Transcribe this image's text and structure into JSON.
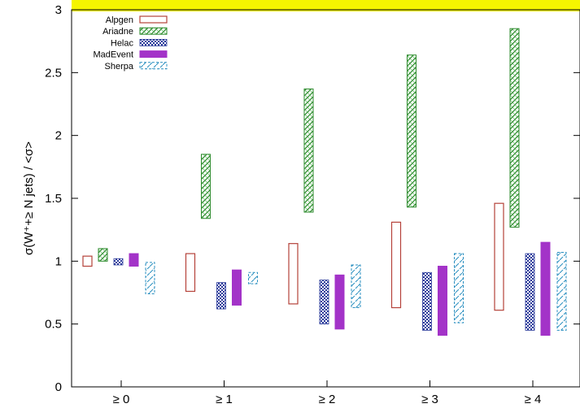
{
  "chart_data": {
    "type": "bar",
    "title": "",
    "ylabel": "σ(W⁺+≥ N jets) / <σ>",
    "xlabel": "",
    "ylim": [
      0,
      3
    ],
    "yticks": [
      0,
      0.5,
      1,
      1.5,
      2,
      2.5,
      3
    ],
    "ytick_labels": [
      "0",
      "0.5",
      "1",
      "1.5",
      "2",
      "2.5",
      "3"
    ],
    "categories": [
      "≥ 0",
      "≥ 1",
      "≥ 2",
      "≥ 3",
      "≥ 4"
    ],
    "legend_position": "top-left",
    "series": [
      {
        "name": "Alpgen",
        "style": "hollow",
        "color": "#b5423a",
        "ranges": [
          [
            0.96,
            1.04
          ],
          [
            0.76,
            1.06
          ],
          [
            0.66,
            1.14
          ],
          [
            0.63,
            1.31
          ],
          [
            0.61,
            1.46
          ]
        ]
      },
      {
        "name": "Ariadne",
        "style": "hatch-green",
        "color": "#2e8b2e",
        "ranges": [
          [
            1.0,
            1.1
          ],
          [
            1.34,
            1.85
          ],
          [
            1.39,
            2.37
          ],
          [
            1.43,
            2.64
          ],
          [
            1.27,
            2.85
          ]
        ]
      },
      {
        "name": "Helac",
        "style": "hatch-blue",
        "color": "#2a3a9a",
        "ranges": [
          [
            0.97,
            1.02
          ],
          [
            0.62,
            0.83
          ],
          [
            0.5,
            0.85
          ],
          [
            0.45,
            0.91
          ],
          [
            0.45,
            1.06
          ]
        ]
      },
      {
        "name": "MadEvent",
        "style": "solid",
        "color": "#a333c8",
        "ranges": [
          [
            0.96,
            1.06
          ],
          [
            0.65,
            0.93
          ],
          [
            0.46,
            0.89
          ],
          [
            0.41,
            0.96
          ],
          [
            0.41,
            1.15
          ]
        ]
      },
      {
        "name": "Sherpa",
        "style": "dashed-cyan",
        "color": "#2a8fc0",
        "ranges": [
          [
            0.74,
            0.99
          ],
          [
            0.82,
            0.91
          ],
          [
            0.63,
            0.97
          ],
          [
            0.51,
            1.06
          ],
          [
            0.45,
            1.07
          ]
        ]
      }
    ]
  }
}
